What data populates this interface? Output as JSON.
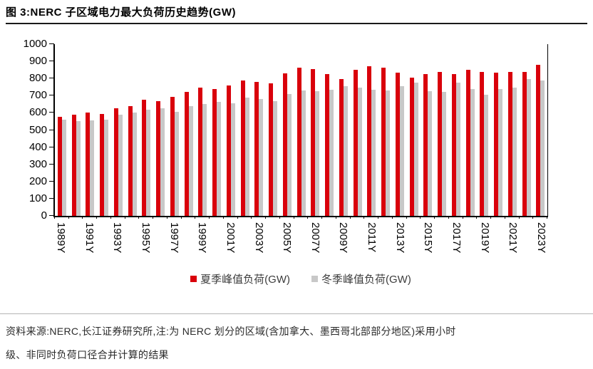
{
  "figure": {
    "title": "图 3:NERC 子区域电力最大负荷历史趋势(GW)",
    "source_note_line1": "资料来源:NERC,长江证券研究所,注:为 NERC 划分的区域(含加拿大、墨西哥北部部分地区)采用小时",
    "source_note_line2": "级、非同时负荷口径合并计算的结果"
  },
  "chart_data": {
    "type": "bar",
    "title": "NERC 子区域电力最大负荷历史趋势(GW)",
    "categories": [
      "1989Y",
      "1990Y",
      "1991Y",
      "1992Y",
      "1993Y",
      "1994Y",
      "1995Y",
      "1996Y",
      "1997Y",
      "1998Y",
      "1999Y",
      "2000Y",
      "2001Y",
      "2002Y",
      "2003Y",
      "2004Y",
      "2005Y",
      "2006Y",
      "2007Y",
      "2008Y",
      "2009Y",
      "2010Y",
      "2011Y",
      "2012Y",
      "2013Y",
      "2014Y",
      "2015Y",
      "2016Y",
      "2017Y",
      "2018Y",
      "2019Y",
      "2020Y",
      "2021Y",
      "2022Y",
      "2023Y"
    ],
    "series": [
      {
        "name": "夏季峰值负荷(GW)",
        "color": "#d9000b",
        "values": [
          575,
          590,
          600,
          595,
          625,
          640,
          675,
          670,
          695,
          720,
          745,
          740,
          760,
          790,
          780,
          770,
          830,
          865,
          855,
          825,
          795,
          850,
          870,
          865,
          835,
          805,
          825,
          840,
          825,
          850,
          840,
          835,
          840,
          840,
          880
        ]
      },
      {
        "name": "冬季峰值负荷(GW)",
        "color": "#c8c8c8",
        "values": [
          560,
          550,
          555,
          560,
          590,
          600,
          620,
          625,
          605,
          640,
          650,
          665,
          655,
          690,
          680,
          670,
          710,
          730,
          725,
          735,
          755,
          745,
          735,
          730,
          755,
          775,
          725,
          720,
          775,
          740,
          705,
          740,
          745,
          795,
          790
        ]
      }
    ],
    "xlabel": "",
    "ylabel": "",
    "ylim": [
      0,
      1000
    ],
    "yticks": [
      0,
      100,
      200,
      300,
      400,
      500,
      600,
      700,
      800,
      900,
      1000
    ],
    "xtick_label_every": 2,
    "grid": false,
    "legend_position": "bottom"
  }
}
